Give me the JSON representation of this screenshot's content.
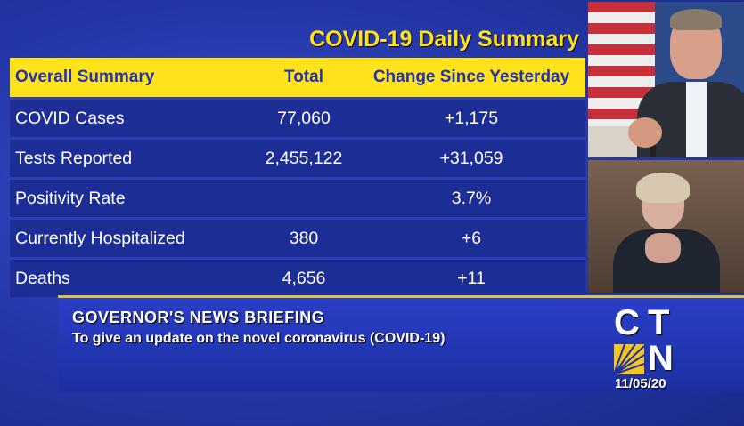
{
  "summary": {
    "title": "COVID-19 Daily Summary",
    "headers": [
      "Overall Summary",
      "Total",
      "Change Since Yesterday"
    ],
    "rows": [
      {
        "label": "COVID Cases",
        "total": "77,060",
        "change": "+1,175"
      },
      {
        "label": "Tests Reported",
        "total": "2,455,122",
        "change": "+31,059"
      },
      {
        "label": "Positivity Rate",
        "total": "",
        "change": "3.7%"
      },
      {
        "label": "Currently Hospitalized",
        "total": "380",
        "change": "+6"
      },
      {
        "label": "Deaths",
        "total": "4,656",
        "change": "+11"
      }
    ]
  },
  "lower_third": {
    "headline": "GOVERNOR'S  NEWS  BRIEFING",
    "subtitle": "To give an update on the novel coronavirus (COVID-19)",
    "logo": {
      "c": "C",
      "t": "T",
      "n": "N"
    },
    "date": "11/05/20"
  },
  "colors": {
    "background": "#2a3fb8",
    "accent_yellow": "#ffe21a",
    "row_fill": "#1c2d96"
  }
}
